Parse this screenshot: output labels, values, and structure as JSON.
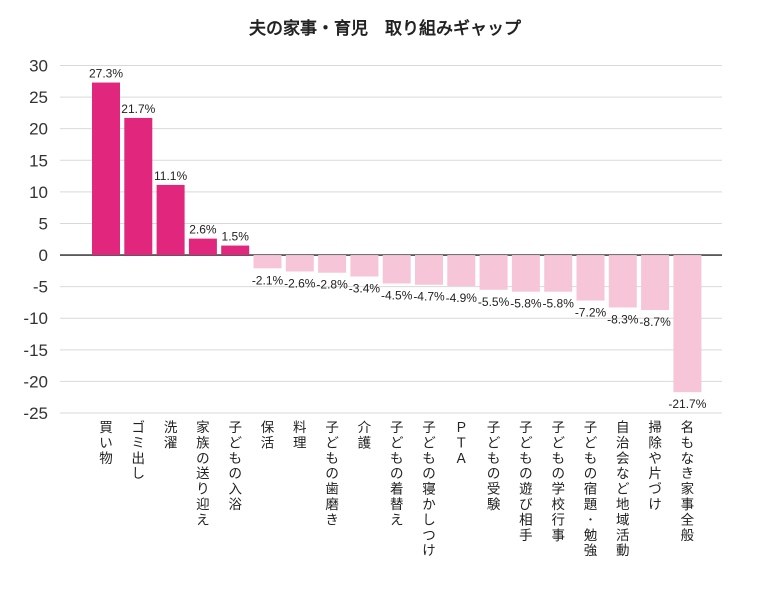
{
  "colors": {
    "positive": "#e0267d",
    "negative": "#f6c6d8",
    "grid": "#d9d9d9",
    "axis": "#222222",
    "text": "#222222"
  },
  "chart_data": {
    "type": "bar",
    "title": "夫の家事・育児　取り組みギャップ",
    "xlabel": "",
    "ylabel": "",
    "ylim": [
      -25,
      30
    ],
    "yticks": [
      30,
      25,
      20,
      15,
      10,
      5,
      0,
      -5,
      -10,
      -15,
      -20,
      -25
    ],
    "grid": true,
    "categories": [
      "買い物",
      "ゴミ出し",
      "洗濯",
      "家族の送り迎え",
      "子どもの入浴",
      "保活",
      "料理",
      "子どもの歯磨き",
      "介護",
      "子どもの着替え",
      "子どもの寝かしつけ",
      "ＰＴＡ",
      "子どもの受験",
      "子どもの遊び相手",
      "子どもの学校行事",
      "子どもの宿題・勉強",
      "自治会など地域活動",
      "掃除や片づけ",
      "名もなき家事全般"
    ],
    "values": [
      27.3,
      21.7,
      11.1,
      2.6,
      1.5,
      -2.1,
      -2.6,
      -2.8,
      -3.4,
      -4.5,
      -4.7,
      -4.9,
      -5.5,
      -5.8,
      -5.8,
      -7.2,
      -8.3,
      -8.7,
      -21.7
    ],
    "labels": [
      "27.3%",
      "21.7%",
      "11.1%",
      "2.6%",
      "1.5%",
      "-2.1%",
      "-2.6%",
      "-2.8%",
      "-3.4%",
      "-4.5%",
      "-4.7%",
      "-4.9%",
      "-5.5%",
      "-5.8%",
      "-5.8%",
      "-7.2%",
      "-8.3%",
      "-8.7%",
      "-21.7%"
    ]
  }
}
